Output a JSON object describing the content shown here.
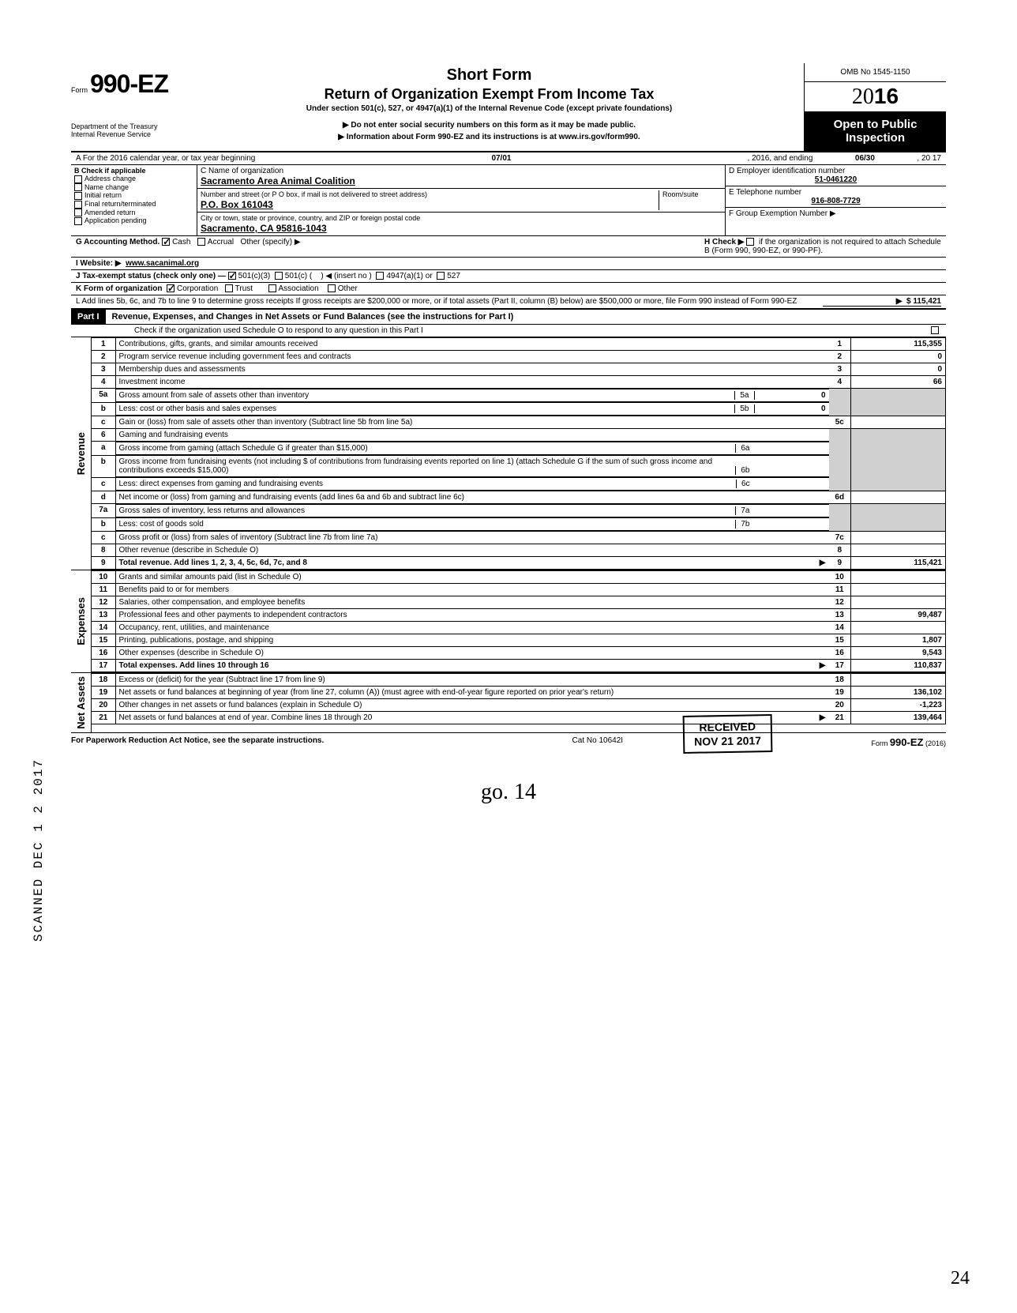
{
  "header": {
    "form_prefix": "Form",
    "form_number": "990-EZ",
    "short_form": "Short Form",
    "main_title": "Return of Organization Exempt From Income Tax",
    "subtitle": "Under section 501(c), 527, or 4947(a)(1) of the Internal Revenue Code (except private foundations)",
    "notice": "Do not enter social security numbers on this form as it may be made public.",
    "info_line": "Information about Form 990-EZ and its instructions is at www.irs.gov/form990.",
    "omb": "OMB No 1545-1150",
    "year_thin": "20",
    "year_bold": "16",
    "open_public": "Open to Public Inspection",
    "dept1": "Department of the Treasury",
    "dept2": "Internal Revenue Service"
  },
  "period": {
    "a_label": "A For the 2016 calendar year, or tax year beginning",
    "begin": "07/01",
    "mid": ", 2016, and ending",
    "end": "06/30",
    "end_year": ", 20   17"
  },
  "section_b": {
    "check_label": "B  Check if applicable",
    "items": [
      "Address change",
      "Name change",
      "Initial return",
      "Final return/terminated",
      "Amended return",
      "Application pending"
    ],
    "c_label": "C  Name of organization",
    "org_name": "Sacramento Area Animal Coalition",
    "street_label": "Number and street (or P O  box, if mail is not delivered to street address)",
    "room_label": "Room/suite",
    "street": "P.O. Box 161043",
    "city_label": "City or town, state or province, country, and ZIP or foreign postal code",
    "city": "Sacramento, CA 95816-1043",
    "d_label": "D Employer identification number",
    "ein": "51-0461220",
    "e_label": "E  Telephone number",
    "phone": "916-808-7729",
    "f_label": "F  Group Exemption Number ▶"
  },
  "section_g": {
    "g_label": "G  Accounting Method.",
    "cash": "Cash",
    "accrual": "Accrual",
    "other": "Other (specify) ▶",
    "h_label": "H  Check ▶",
    "h_text": "if the organization is not required to attach Schedule B (Form 990, 990-EZ, or 990-PF).",
    "i_label": "I  Website: ▶",
    "website": "www.sacanimal.org",
    "j_label": "J Tax-exempt status (check only one) —",
    "j1": "501(c)(3)",
    "j2": "501(c) (",
    "j2b": ")  ◀ (insert no )",
    "j3": "4947(a)(1) or",
    "j4": "527",
    "k_label": "K  Form of organization",
    "k1": "Corporation",
    "k2": "Trust",
    "k3": "Association",
    "k4": "Other"
  },
  "section_l": {
    "text": "L  Add lines 5b, 6c, and 7b to line 9 to determine gross receipts  If gross receipts are $200,000 or more, or if total assets (Part II, column (B) below) are $500,000 or more, file Form 990 instead of Form 990-EZ",
    "amount": "115,421"
  },
  "part1": {
    "header": "Part I",
    "title": "Revenue, Expenses, and Changes in Net Assets or Fund Balances (see the instructions for Part I)",
    "check_line": "Check if the organization used Schedule O to respond to any question in this Part I"
  },
  "revenue_lines": [
    {
      "n": "1",
      "d": "Contributions, gifts, grants, and similar amounts received",
      "r": "1",
      "v": "115,355"
    },
    {
      "n": "2",
      "d": "Program service revenue including government fees and contracts",
      "r": "2",
      "v": "0"
    },
    {
      "n": "3",
      "d": "Membership dues and assessments",
      "r": "3",
      "v": "0"
    },
    {
      "n": "4",
      "d": "Investment income",
      "r": "4",
      "v": "66"
    }
  ],
  "line5": {
    "a": "Gross amount from sale of assets other than inventory",
    "av": "0",
    "b": "Less: cost or other basis and sales expenses",
    "bv": "0",
    "c": "Gain or (loss) from sale of assets other than inventory (Subtract line 5b from line 5a)",
    "cn": "5c"
  },
  "line6": {
    "h": "Gaming and fundraising events",
    "a": "Gross income from gaming (attach Schedule G if greater than $15,000)",
    "b": "Gross income from fundraising events (not including  $                    of contributions from fundraising events reported on line 1) (attach Schedule G if the sum of such gross income and contributions exceeds $15,000)",
    "c": "Less: direct expenses from gaming and fundraising events",
    "d": "Net income or (loss) from gaming and fundraising events (add lines 6a and 6b and subtract line 6c)",
    "dn": "6d"
  },
  "line7": {
    "a": "Gross sales of inventory, less returns and allowances",
    "b": "Less: cost of goods sold",
    "c": "Gross profit or (loss) from sales of inventory (Subtract line 7b from line 7a)",
    "cn": "7c"
  },
  "line8": {
    "d": "Other revenue (describe in Schedule O)",
    "n": "8"
  },
  "line9": {
    "d": "Total revenue. Add lines 1, 2, 3, 4, 5c, 6d, 7c, and 8",
    "n": "9",
    "v": "115,421"
  },
  "expense_lines": [
    {
      "n": "10",
      "d": "Grants and similar amounts paid (list in Schedule O)",
      "v": ""
    },
    {
      "n": "11",
      "d": "Benefits paid to or for members",
      "v": ""
    },
    {
      "n": "12",
      "d": "Salaries, other compensation, and employee benefits",
      "v": ""
    },
    {
      "n": "13",
      "d": "Professional fees and other payments to independent contractors",
      "v": "99,487"
    },
    {
      "n": "14",
      "d": "Occupancy, rent, utilities, and maintenance",
      "v": ""
    },
    {
      "n": "15",
      "d": "Printing, publications, postage, and shipping",
      "v": "1,807"
    },
    {
      "n": "16",
      "d": "Other expenses (describe in Schedule O)",
      "v": "9,543"
    },
    {
      "n": "17",
      "d": "Total expenses. Add lines 10 through 16",
      "v": "110,837",
      "arrow": true
    }
  ],
  "netasset_lines": [
    {
      "n": "18",
      "d": "Excess or (deficit) for the year (Subtract line 17 from line 9)",
      "v": ""
    },
    {
      "n": "19",
      "d": "Net assets or fund balances at beginning of year (from line 27, column (A)) (must agree with end-of-year figure reported on prior year's return)",
      "v": "136,102"
    },
    {
      "n": "20",
      "d": "Other changes in net assets or fund balances (explain in Schedule O)",
      "v": "-1,223"
    },
    {
      "n": "21",
      "d": "Net assets or fund balances at end of year. Combine lines 18 through 20",
      "v": "139,464",
      "arrow": true
    }
  ],
  "footer": {
    "left": "For Paperwork Reduction Act Notice, see the separate instructions.",
    "mid": "Cat No  10642I",
    "right": "Form 990-EZ (2016)"
  },
  "stamps": {
    "received": "RECEIVED",
    "date": "NOV 21 2017",
    "scanned": "SCANNED DEC 1 2 2017",
    "handwrite": "go. 14",
    "pagenum": "24"
  },
  "vert": {
    "revenue": "Revenue",
    "expenses": "Expenses",
    "netassets": "Net Assets"
  }
}
